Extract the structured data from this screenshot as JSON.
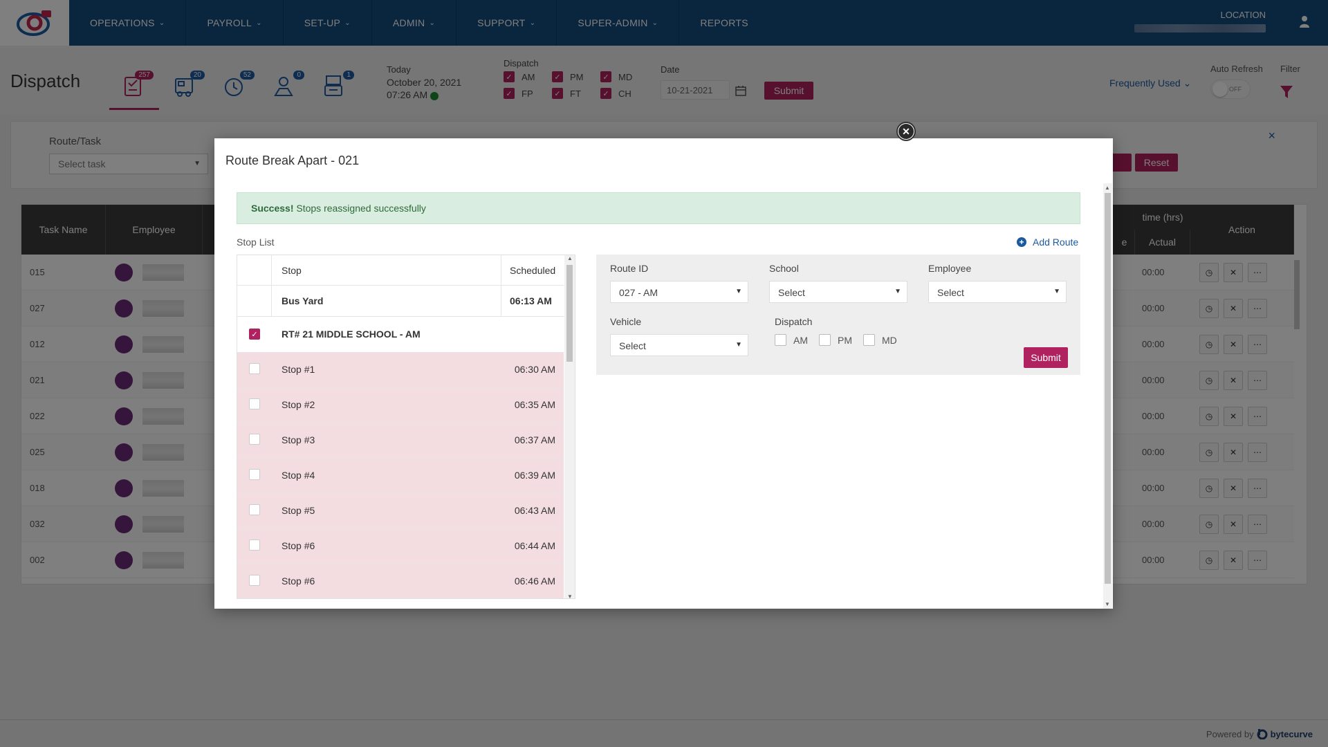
{
  "nav": {
    "items": [
      {
        "label": "OPERATIONS",
        "has_dropdown": true
      },
      {
        "label": "PAYROLL",
        "has_dropdown": true
      },
      {
        "label": "SET-UP",
        "has_dropdown": true
      },
      {
        "label": "ADMIN",
        "has_dropdown": true
      },
      {
        "label": "SUPPORT",
        "has_dropdown": true
      },
      {
        "label": "SUPER-ADMIN",
        "has_dropdown": true
      },
      {
        "label": "REPORTS",
        "has_dropdown": false
      }
    ],
    "location_label": "LOCATION"
  },
  "header": {
    "title": "Dispatch",
    "tabs": [
      {
        "icon": "tasks-icon",
        "badge": "257"
      },
      {
        "icon": "bus-schedule-icon",
        "badge": "20"
      },
      {
        "icon": "clock-icon",
        "badge": "52"
      },
      {
        "icon": "route-map-icon",
        "badge": "0"
      },
      {
        "icon": "transit-icon",
        "badge": "1"
      }
    ],
    "today_label": "Today",
    "today_date": "October 20, 2021",
    "today_time": "07:26 AM",
    "dispatch_label": "Dispatch",
    "dispatch_options": [
      {
        "label": "AM",
        "checked": true
      },
      {
        "label": "PM",
        "checked": true
      },
      {
        "label": "MD",
        "checked": true
      },
      {
        "label": "FP",
        "checked": true
      },
      {
        "label": "FT",
        "checked": true
      },
      {
        "label": "CH",
        "checked": true
      }
    ],
    "date_label": "Date",
    "date_value": "10-21-2021",
    "submit_label": "Submit",
    "frequently_used": "Frequently Used",
    "auto_refresh_label": "Auto Refresh",
    "auto_refresh_state": "OFF",
    "filter_label": "Filter"
  },
  "filter_panel": {
    "route_task_label": "Route/Task",
    "route_task_placeholder": "Select task",
    "reset_label": "Reset",
    "close_glyph": "×"
  },
  "bg_table": {
    "headers": {
      "task_name": "Task Name",
      "employee": "Employee",
      "time_hrs": "time (hrs)",
      "e": "e",
      "actual": "Actual",
      "action": "Action"
    },
    "rows": [
      {
        "task": "015",
        "actual": "00:00"
      },
      {
        "task": "027",
        "actual": "00:00"
      },
      {
        "task": "012",
        "actual": "00:00"
      },
      {
        "task": "021",
        "actual": "00:00"
      },
      {
        "task": "022",
        "actual": "00:00"
      },
      {
        "task": "025",
        "actual": "00:00"
      },
      {
        "task": "018",
        "actual": "00:00"
      },
      {
        "task": "032",
        "actual": "00:00"
      },
      {
        "task": "002",
        "actual": "00:00"
      }
    ]
  },
  "modal": {
    "title": "Route Break Apart - 021",
    "success_strong": "Success!",
    "success_text": "Stops reassigned successfully",
    "stop_list_label": "Stop List",
    "add_route_label": "Add Route",
    "table_headers": {
      "stop": "Stop",
      "scheduled": "Scheduled"
    },
    "bus_yard": {
      "stop": "Bus Yard",
      "scheduled": "06:13 AM"
    },
    "route_group": {
      "label": "RT# 21 MIDDLE SCHOOL - AM",
      "checked": true
    },
    "stops": [
      {
        "stop": "Stop #1",
        "scheduled": "06:30 AM",
        "checked": false
      },
      {
        "stop": "Stop #2",
        "scheduled": "06:35 AM",
        "checked": false
      },
      {
        "stop": "Stop #3",
        "scheduled": "06:37 AM",
        "checked": false
      },
      {
        "stop": "Stop #4",
        "scheduled": "06:39 AM",
        "checked": false
      },
      {
        "stop": "Stop #5",
        "scheduled": "06:43 AM",
        "checked": false
      },
      {
        "stop": "Stop #6",
        "scheduled": "06:44 AM",
        "checked": false
      },
      {
        "stop": "Stop #6",
        "scheduled": "06:46 AM",
        "checked": false
      }
    ],
    "form": {
      "route_id_label": "Route ID",
      "route_id_value": "027 - AM",
      "school_label": "School",
      "school_value": "Select",
      "employee_label": "Employee",
      "employee_value": "Select",
      "vehicle_label": "Vehicle",
      "vehicle_value": "Select",
      "dispatch_label": "Dispatch",
      "dispatch_options": [
        {
          "label": "AM",
          "checked": false
        },
        {
          "label": "PM",
          "checked": false
        },
        {
          "label": "MD",
          "checked": false
        }
      ],
      "submit_label": "Submit"
    }
  },
  "footer": {
    "powered_by": "Powered by",
    "brand": "bytecurve"
  },
  "colors": {
    "nav_bg": "#144a7d",
    "accent": "#b0215f",
    "link": "#1c5aa0",
    "success_bg": "#d9ede0",
    "stop_row_bg": "#f3dde0"
  }
}
